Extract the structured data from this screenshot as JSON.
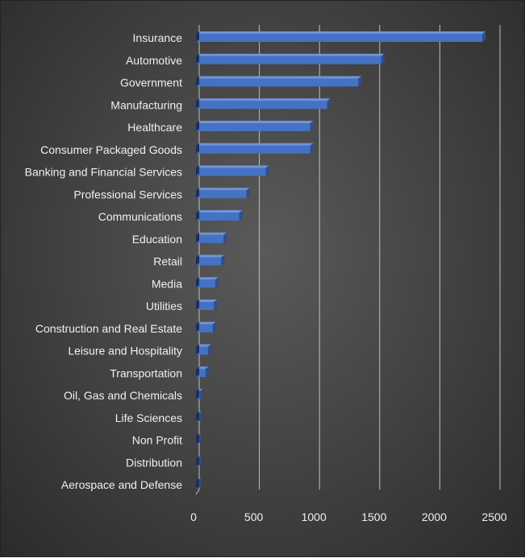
{
  "chart_data": {
    "type": "bar",
    "orientation": "horizontal",
    "style": "3d",
    "categories": [
      "Insurance",
      "Automotive",
      "Government",
      "Manufacturing",
      "Healthcare",
      "Consumer Packaged Goods",
      "Banking and Financial Services",
      "Professional Services",
      "Communications",
      "Education",
      "Retail",
      "Media",
      "Utilities",
      "Construction and Real Estate",
      "Leisure and Hospitality",
      "Transportation",
      "Oil, Gas and Chemicals",
      "Life Sciences",
      "Non Profit",
      "Distribution",
      "Aerospace and Defense"
    ],
    "values": [
      2380,
      1540,
      1350,
      1090,
      950,
      950,
      580,
      420,
      360,
      230,
      210,
      160,
      150,
      140,
      100,
      80,
      30,
      20,
      15,
      15,
      15
    ],
    "xlim": [
      0,
      2500
    ],
    "xticks": [
      0,
      500,
      1000,
      1500,
      2000,
      2500
    ],
    "grid": true,
    "legend": "none",
    "title": "",
    "xlabel": "",
    "ylabel": "",
    "colors": {
      "bar_front": "#4472c4",
      "bar_top": "#6f94d8",
      "bar_side": "#2c4f8f",
      "gridline": "#bfbfbf",
      "text": "#f0f0f0"
    }
  }
}
